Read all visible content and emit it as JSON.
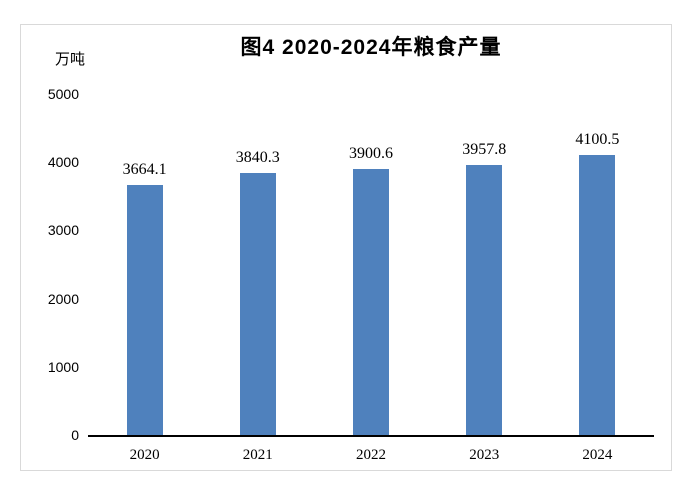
{
  "page": {
    "background_color": "#ffffff",
    "frame_border_color": "#d9d9d9"
  },
  "chart_data": {
    "type": "bar",
    "title": "图4 2020-2024年粮食产量",
    "unit_label": "万吨",
    "categories": [
      "2020",
      "2021",
      "2022",
      "2023",
      "2024"
    ],
    "values": [
      3664.1,
      3840.3,
      3900.6,
      3957.8,
      4100.5
    ],
    "data_labels": [
      "3664.1",
      "3840.3",
      "3900.6",
      "3957.8",
      "4100.5"
    ],
    "xlabel": "",
    "ylabel": "万吨",
    "ylim": [
      0,
      5000
    ],
    "yticks": [
      0,
      1000,
      2000,
      3000,
      4000,
      5000
    ],
    "bar_color": "#4F81BD",
    "axis_color": "#000000",
    "text_color": "#000000",
    "grid": false,
    "legend": "none"
  }
}
